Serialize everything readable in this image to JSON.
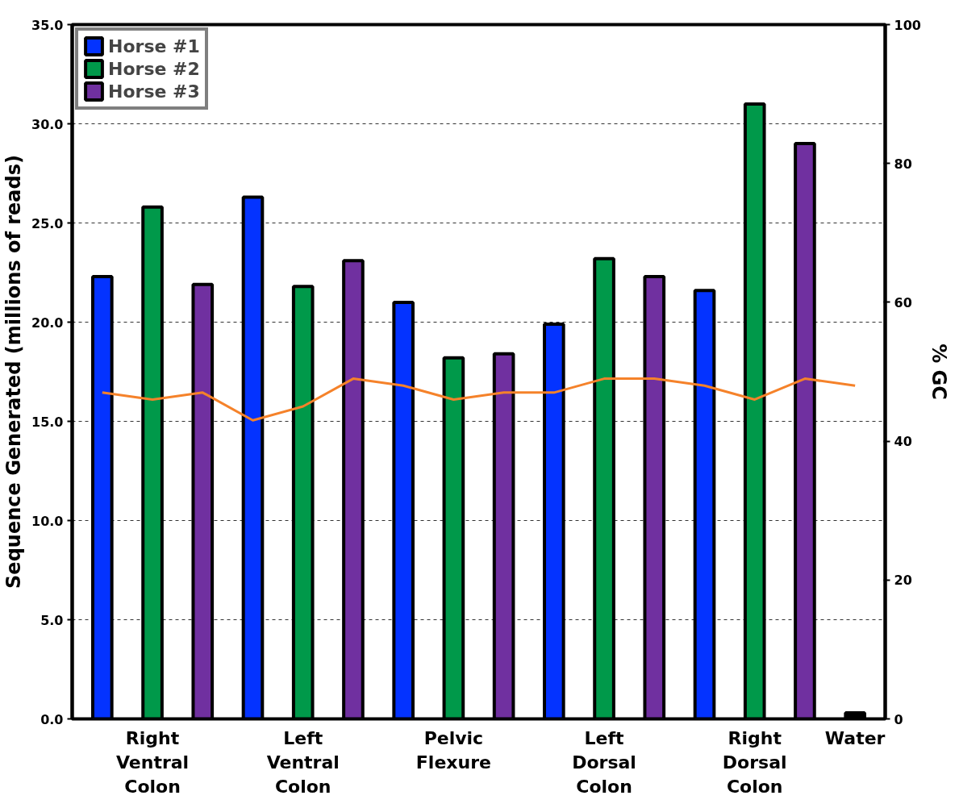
{
  "chart_data": {
    "type": "bar",
    "ylabel": "Sequence Generated (millions of reads)",
    "y2label": "% GC",
    "categories": [
      null,
      "Right\nVentral\nColon",
      null,
      null,
      "Left\nVentral\nColon",
      null,
      null,
      "Pelvic\nFlexure",
      null,
      null,
      "Left\nDorsal\nColon",
      null,
      null,
      "Right\nDorsal\nColon",
      null,
      "Water"
    ],
    "series": [
      {
        "name": "Horse #1",
        "color": "#0433ff",
        "values": [
          22.3,
          null,
          null,
          26.3,
          null,
          null,
          21.0,
          null,
          null,
          19.9,
          null,
          null,
          21.6,
          null,
          null,
          null
        ]
      },
      {
        "name": "Horse #2",
        "color": "#00994a",
        "values": [
          null,
          25.8,
          null,
          null,
          21.8,
          null,
          null,
          18.2,
          null,
          null,
          23.2,
          null,
          null,
          31.0,
          null,
          null
        ]
      },
      {
        "name": "Horse #3",
        "color": "#7030a0",
        "values": [
          null,
          null,
          21.9,
          null,
          null,
          23.1,
          null,
          null,
          18.4,
          null,
          null,
          22.3,
          null,
          null,
          29.0,
          null
        ]
      },
      {
        "color": "#000000",
        "values": [
          null,
          null,
          null,
          null,
          null,
          null,
          null,
          null,
          null,
          null,
          null,
          null,
          null,
          null,
          null,
          0.3
        ]
      },
      {
        "type": "line",
        "axis": "y2",
        "color": "#f5822a",
        "values": [
          47,
          46,
          47,
          43,
          45,
          49,
          48,
          46,
          47,
          47,
          49,
          49,
          48,
          46,
          49,
          48
        ]
      }
    ],
    "ylim": [
      0,
      35
    ],
    "yticks": [
      {
        "value": 0,
        "label": "0.0"
      },
      {
        "value": 5,
        "label": "5.0"
      },
      {
        "value": 10,
        "label": "10.0"
      },
      {
        "value": 15,
        "label": "15.0"
      },
      {
        "value": 20,
        "label": "20.0"
      },
      {
        "value": 25,
        "label": "25.0"
      },
      {
        "value": 30,
        "label": "30.0"
      },
      {
        "value": 35,
        "label": "35.0"
      }
    ],
    "y2lim": [
      0,
      100
    ],
    "y2ticks": [
      0,
      20,
      40,
      60,
      80,
      100
    ],
    "grid": "y",
    "legend": "top left",
    "marker": "none",
    "line_style": "solid"
  }
}
